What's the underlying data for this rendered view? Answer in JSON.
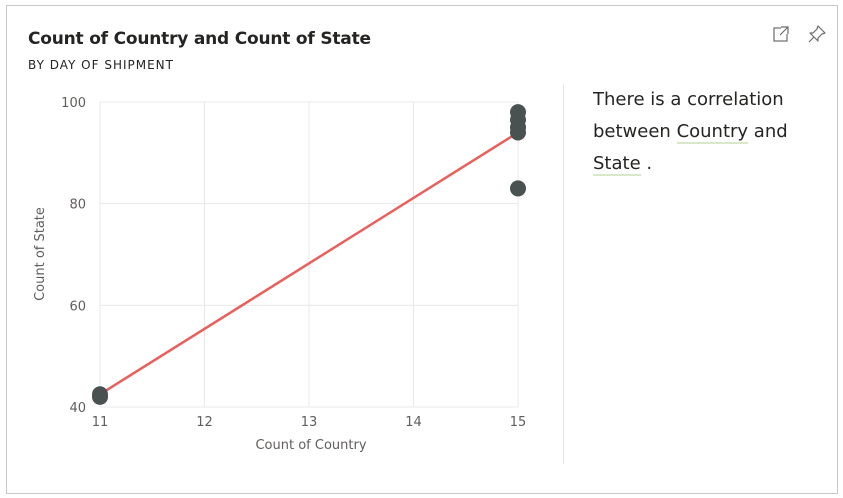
{
  "visual": {
    "title": "Count of Country and Count of State",
    "subtitle": "BY DAY OF SHIPMENT",
    "expand_icon": "expand-icon",
    "pin_icon": "pin-icon"
  },
  "insight": {
    "line1": "There is a correlation",
    "line2_prefix": "between ",
    "field1": "Country",
    "line2_suffix": " and",
    "field2": "State",
    "line3_suffix": " ."
  },
  "chart_data": {
    "type": "scatter",
    "xlabel": "Count of Country",
    "ylabel": "Count of State",
    "xlim": [
      11,
      15
    ],
    "ylim": [
      40,
      100
    ],
    "xticks": [
      11,
      12,
      13,
      14,
      15
    ],
    "yticks": [
      40,
      60,
      80,
      100
    ],
    "grid": true,
    "points": [
      {
        "x": 11,
        "y": 42
      },
      {
        "x": 11,
        "y": 42.5
      },
      {
        "x": 15,
        "y": 98
      },
      {
        "x": 15,
        "y": 96.5
      },
      {
        "x": 15,
        "y": 95
      },
      {
        "x": 15,
        "y": 94
      },
      {
        "x": 15,
        "y": 83
      }
    ],
    "trendline": {
      "x": [
        11,
        15
      ],
      "y": [
        42.5,
        94
      ]
    },
    "colors": {
      "points": "#4a5151",
      "trendline": "#e8605c",
      "grid": "#e8e8e8"
    }
  }
}
